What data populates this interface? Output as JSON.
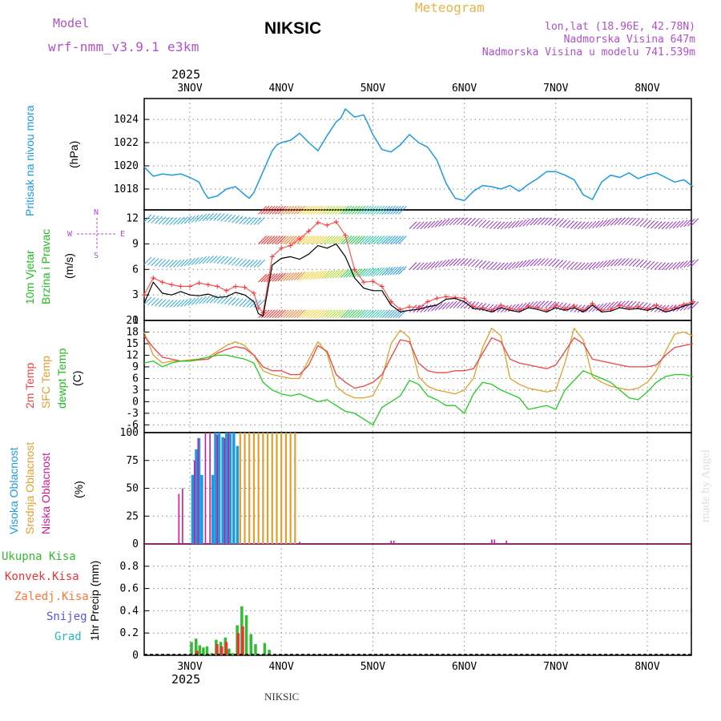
{
  "header": {
    "model_label": "Model",
    "model_name": "wrf-nmm_v3.9.1 e3km",
    "title": "NIKSIC",
    "meteogram": "Meteogram",
    "lonlat": "lon,lat (18.96E, 42.78N)",
    "elevation": "Nadmorska Visina 647m",
    "model_elevation": "Nadmorska Visina u modelu 741.539m",
    "watermark": "made by Angel",
    "footer_station": "NIKSIC",
    "year_top": "2025",
    "year_bottom": "2025"
  },
  "colors": {
    "pressure": "#1e9be0",
    "temp2m": "#ee4444",
    "sfc": "#e0a030",
    "dew": "#22cc22",
    "high_cloud": "#1e9be0",
    "mid_cloud": "#e0a030",
    "low_cloud": "#cc1a9a",
    "purple": "#b04fd0",
    "total_precip": "#33bb33",
    "convective": "#ee3333",
    "frozen": "#ff7733",
    "snow": "#5555ee",
    "grad": "#22bbbb"
  },
  "days": [
    "3NOV",
    "4NOV",
    "5NOV",
    "6NOV",
    "7NOV",
    "8NOV"
  ],
  "panel_labels": {
    "pressure_title": "Pritisak na nivou mora",
    "pressure_unit": "(hPa)",
    "wind_title_1": "10m Vjetar",
    "wind_title_2": "Brzina i Pravac",
    "wind_unit": "(m/s)",
    "compass_n": "N",
    "compass_e": "E",
    "compass_s": "S",
    "compass_w": "W",
    "temp_title_1": "2m Temp",
    "temp_title_2": "SFC Temp",
    "temp_title_3": "dewpt Temp",
    "temp_unit": "(C)",
    "cloud_title_1": "Visoka Oblacnost",
    "cloud_title_2": "Srednja Oblacnost",
    "cloud_title_3": "Niska Oblacnost",
    "cloud_unit": "(%)",
    "precip_title": "1hr Precip (mm)"
  },
  "precip_legend": [
    "Ukupna Kisa",
    "Konvek.Kisa",
    "Zaledj.Kisa",
    "Snijeg",
    "Grad"
  ],
  "chart_data": [
    {
      "type": "line",
      "title": "Pritisak na nivou mora",
      "ylabel": "(hPa)",
      "x_unit": "day (0 = 3NOV 00)",
      "ylim": [
        1016.2,
        1025.8
      ],
      "yticks": [
        1018,
        1020,
        1022,
        1024
      ],
      "series": [
        {
          "name": "SLP",
          "x": [
            -0.5,
            -0.4,
            -0.3,
            -0.2,
            -0.1,
            0.0,
            0.1,
            0.15,
            0.2,
            0.3,
            0.4,
            0.5,
            0.6,
            0.65,
            0.7,
            0.8,
            0.9,
            0.95,
            1.0,
            1.1,
            1.2,
            1.3,
            1.4,
            1.5,
            1.6,
            1.65,
            1.7,
            1.8,
            1.9,
            1.95,
            2.0,
            2.1,
            2.2,
            2.3,
            2.4,
            2.5,
            2.6,
            2.7,
            2.8,
            2.9,
            3.0,
            3.1,
            3.2,
            3.3,
            3.4,
            3.5,
            3.6,
            3.7,
            3.8,
            3.9,
            4.0,
            4.1,
            4.2,
            4.3,
            4.4,
            4.5,
            4.6,
            4.7,
            4.8,
            4.9,
            5.0,
            5.1,
            5.2,
            5.3,
            5.4,
            5.5
          ],
          "y": [
            1019.9,
            1019.1,
            1019.3,
            1019.2,
            1019.3,
            1019.0,
            1018.6,
            1017.8,
            1017.2,
            1017.4,
            1018.0,
            1018.2,
            1017.5,
            1017.2,
            1017.7,
            1019.5,
            1021.3,
            1021.8,
            1022.0,
            1022.2,
            1022.8,
            1022.0,
            1021.3,
            1022.6,
            1023.8,
            1024.1,
            1024.9,
            1024.2,
            1024.4,
            1023.6,
            1022.7,
            1021.4,
            1021.2,
            1021.8,
            1022.7,
            1022.0,
            1021.6,
            1020.5,
            1018.5,
            1017.2,
            1017.0,
            1017.8,
            1018.3,
            1018.2,
            1018.0,
            1018.3,
            1017.8,
            1018.4,
            1018.9,
            1019.5,
            1019.5,
            1019.2,
            1018.8,
            1017.5,
            1017.1,
            1018.6,
            1019.2,
            1019.0,
            1019.4,
            1018.9,
            1019.2,
            1019.4,
            1019.0,
            1018.6,
            1018.8,
            1018.2
          ]
        }
      ]
    },
    {
      "type": "line",
      "title": "10m Vjetar Brzina i Pravac",
      "ylabel": "(m/s)",
      "x_unit": "day (0 = 3NOV 00)",
      "ylim": [
        0,
        13
      ],
      "yticks": [
        0,
        3,
        6,
        9,
        12
      ],
      "series": [
        {
          "name": "Brzina",
          "x": [
            -0.5,
            -0.4,
            -0.3,
            -0.2,
            -0.1,
            0.0,
            0.1,
            0.2,
            0.3,
            0.4,
            0.5,
            0.6,
            0.7,
            0.75,
            0.8,
            0.9,
            1.0,
            1.1,
            1.2,
            1.3,
            1.4,
            1.5,
            1.6,
            1.7,
            1.8,
            1.9,
            2.0,
            2.1,
            2.2,
            2.3,
            2.4,
            2.5,
            2.6,
            2.7,
            2.8,
            2.9,
            3.0,
            3.1,
            3.2,
            3.3,
            3.4,
            3.5,
            3.6,
            3.7,
            3.8,
            3.9,
            4.0,
            4.1,
            4.2,
            4.3,
            4.4,
            4.5,
            4.6,
            4.7,
            4.8,
            4.9,
            5.0,
            5.1,
            5.2,
            5.3,
            5.4,
            5.5
          ],
          "y": [
            2.0,
            4.5,
            3.2,
            3.0,
            3.4,
            3.0,
            2.9,
            3.1,
            2.7,
            2.8,
            3.3,
            3.0,
            2.2,
            0.8,
            0.5,
            6.5,
            7.3,
            7.5,
            7.2,
            7.8,
            8.8,
            8.5,
            9.0,
            7.5,
            5.0,
            3.8,
            3.5,
            3.5,
            1.8,
            1.0,
            1.2,
            1.3,
            1.6,
            1.8,
            2.5,
            2.6,
            2.2,
            1.4,
            1.3,
            1.0,
            1.5,
            1.2,
            1.0,
            1.5,
            1.3,
            1.0,
            1.5,
            1.2,
            1.5,
            1.0,
            1.8,
            1.0,
            1.1,
            1.5,
            1.3,
            1.4,
            1.2,
            1.5,
            1.0,
            1.3,
            1.7,
            2.0
          ]
        },
        {
          "name": "Udari",
          "x": [
            -0.5,
            -0.4,
            -0.3,
            -0.2,
            -0.1,
            0.0,
            0.1,
            0.2,
            0.3,
            0.4,
            0.5,
            0.6,
            0.7,
            0.75,
            0.8,
            0.9,
            1.0,
            1.1,
            1.2,
            1.3,
            1.4,
            1.5,
            1.6,
            1.7,
            1.8,
            1.9,
            2.0,
            2.1,
            2.2,
            2.3,
            2.4,
            2.5,
            2.6,
            2.7,
            2.8,
            2.9,
            3.0,
            3.1,
            3.2,
            3.3,
            3.4,
            3.5,
            3.6,
            3.7,
            3.8,
            3.9,
            4.0,
            4.1,
            4.2,
            4.3,
            4.4,
            4.5,
            4.6,
            4.7,
            4.8,
            4.9,
            5.0,
            5.1,
            5.2,
            5.3,
            5.4,
            5.5
          ],
          "y": [
            3.0,
            5.0,
            4.5,
            4.2,
            4.0,
            4.0,
            4.4,
            4.2,
            4.0,
            3.5,
            4.0,
            3.9,
            3.2,
            1.5,
            0.9,
            7.5,
            8.5,
            8.8,
            9.6,
            10.5,
            11.5,
            11.2,
            11.6,
            10.0,
            6.0,
            4.5,
            4.6,
            4.0,
            2.2,
            1.3,
            1.6,
            1.5,
            2.2,
            2.6,
            2.8,
            2.7,
            2.6,
            1.6,
            1.5,
            1.2,
            1.8,
            1.4,
            1.2,
            1.7,
            1.5,
            1.2,
            1.8,
            1.4,
            1.7,
            1.2,
            2.0,
            1.2,
            1.3,
            1.8,
            1.5,
            1.6,
            1.4,
            1.8,
            1.3,
            1.5,
            1.9,
            2.2
          ]
        }
      ]
    },
    {
      "type": "line",
      "title": "2m Temp / SFC Temp / dewpt Temp",
      "ylabel": "(C)",
      "x_unit": "day (0 = 3NOV 00)",
      "ylim": [
        -8,
        21
      ],
      "yticks": [
        -6,
        -3,
        0,
        3,
        6,
        9,
        12,
        15,
        18,
        21
      ],
      "series": [
        {
          "name": "2m Temp",
          "x": [
            -0.5,
            -0.4,
            -0.3,
            -0.2,
            -0.1,
            0.0,
            0.1,
            0.2,
            0.3,
            0.4,
            0.5,
            0.6,
            0.7,
            0.8,
            0.9,
            1.0,
            1.1,
            1.2,
            1.3,
            1.4,
            1.5,
            1.6,
            1.7,
            1.8,
            1.9,
            2.0,
            2.1,
            2.2,
            2.3,
            2.4,
            2.5,
            2.6,
            2.7,
            2.8,
            2.9,
            3.0,
            3.1,
            3.2,
            3.3,
            3.4,
            3.5,
            3.6,
            3.7,
            3.8,
            3.9,
            4.0,
            4.1,
            4.2,
            4.3,
            4.4,
            4.5,
            4.6,
            4.7,
            4.8,
            4.9,
            5.0,
            5.1,
            5.2,
            5.3,
            5.4,
            5.5
          ],
          "y": [
            17.0,
            14.0,
            11.5,
            11.0,
            10.5,
            10.5,
            10.8,
            11.0,
            12.5,
            13.5,
            14.2,
            13.8,
            12.0,
            9.0,
            8.0,
            8.0,
            7.0,
            7.0,
            9.5,
            14.5,
            13.0,
            7.0,
            5.0,
            3.5,
            4.0,
            5.0,
            7.0,
            11.5,
            16.0,
            15.5,
            10.0,
            8.0,
            7.5,
            7.5,
            8.0,
            8.0,
            8.5,
            12.5,
            16.5,
            15.5,
            11.0,
            10.0,
            9.5,
            9.0,
            8.5,
            9.5,
            13.0,
            16.5,
            15.0,
            11.0,
            10.5,
            10.0,
            9.5,
            9.0,
            9.0,
            9.0,
            9.5,
            12.0,
            14.0,
            14.5,
            15.0
          ]
        },
        {
          "name": "SFC Temp",
          "x": [
            -0.5,
            -0.4,
            -0.3,
            -0.2,
            -0.1,
            0.0,
            0.1,
            0.2,
            0.3,
            0.4,
            0.5,
            0.6,
            0.7,
            0.8,
            0.9,
            1.0,
            1.1,
            1.2,
            1.3,
            1.4,
            1.5,
            1.6,
            1.7,
            1.8,
            1.9,
            2.0,
            2.1,
            2.2,
            2.3,
            2.4,
            2.5,
            2.6,
            2.7,
            2.8,
            2.9,
            3.0,
            3.1,
            3.2,
            3.3,
            3.4,
            3.5,
            3.6,
            3.7,
            3.8,
            3.9,
            4.0,
            4.1,
            4.2,
            4.3,
            4.4,
            4.5,
            4.6,
            4.7,
            4.8,
            4.9,
            5.0,
            5.1,
            5.2,
            5.3,
            5.4,
            5.5
          ],
          "y": [
            18.0,
            12.0,
            10.0,
            10.5,
            10.5,
            10.8,
            11.0,
            11.5,
            13.0,
            14.5,
            15.5,
            14.5,
            12.0,
            8.0,
            7.0,
            6.5,
            6.0,
            6.0,
            11.0,
            15.5,
            12.5,
            4.0,
            2.0,
            1.0,
            1.0,
            1.5,
            6.0,
            15.0,
            18.5,
            16.5,
            6.5,
            4.0,
            3.0,
            2.5,
            2.0,
            3.0,
            6.0,
            14.0,
            19.0,
            17.0,
            6.0,
            4.5,
            3.5,
            3.0,
            2.5,
            3.0,
            10.0,
            19.0,
            16.0,
            6.5,
            5.0,
            4.0,
            3.5,
            3.0,
            3.5,
            5.0,
            8.0,
            13.0,
            17.5,
            18.0,
            17.0
          ]
        },
        {
          "name": "dewpt Temp",
          "x": [
            -0.5,
            -0.4,
            -0.3,
            -0.2,
            -0.1,
            0.0,
            0.1,
            0.2,
            0.3,
            0.4,
            0.5,
            0.6,
            0.7,
            0.8,
            0.9,
            1.0,
            1.1,
            1.2,
            1.3,
            1.4,
            1.5,
            1.6,
            1.7,
            1.8,
            1.9,
            2.0,
            2.1,
            2.2,
            2.3,
            2.4,
            2.5,
            2.6,
            2.7,
            2.8,
            2.9,
            3.0,
            3.1,
            3.2,
            3.3,
            3.4,
            3.5,
            3.6,
            3.7,
            3.8,
            3.9,
            4.0,
            4.1,
            4.2,
            4.3,
            4.4,
            4.5,
            4.6,
            4.7,
            4.8,
            4.9,
            5.0,
            5.1,
            5.2,
            5.3,
            5.4,
            5.5
          ],
          "y": [
            10.0,
            10.5,
            9.0,
            10.0,
            10.5,
            10.5,
            11.0,
            11.5,
            12.0,
            12.0,
            11.5,
            11.0,
            10.0,
            5.0,
            3.0,
            2.0,
            1.5,
            2.0,
            1.0,
            0.0,
            0.5,
            -1.0,
            -2.5,
            -3.0,
            -4.5,
            -6.0,
            -1.5,
            0.0,
            1.5,
            5.5,
            4.5,
            1.5,
            0.5,
            -1.0,
            -1.0,
            -3.0,
            2.0,
            5.0,
            4.5,
            3.0,
            2.0,
            1.0,
            -2.0,
            -1.5,
            -1.0,
            -2.0,
            3.0,
            5.5,
            8.0,
            7.0,
            6.0,
            5.0,
            3.0,
            1.0,
            0.5,
            2.5,
            5.0,
            6.5,
            7.0,
            7.0,
            6.5
          ]
        }
      ]
    },
    {
      "type": "bar",
      "title": "Oblacnost",
      "ylabel": "(%)",
      "x_unit": "day (0 = 3NOV 00)",
      "ylim": [
        0,
        100
      ],
      "yticks": [
        0,
        25,
        50,
        75,
        100
      ],
      "series": [
        {
          "name": "Visoka Oblacnost",
          "x": [
            0.03,
            0.07,
            0.1,
            0.13,
            0.25,
            0.28,
            0.32,
            0.36,
            0.4,
            0.44,
            0.48,
            0.52
          ],
          "values": [
            62,
            85,
            95,
            62,
            62,
            100,
            100,
            96,
            100,
            100,
            100,
            88
          ]
        },
        {
          "name": "Srednja Oblacnost",
          "x": [
            0.55,
            0.6,
            0.65,
            0.7,
            0.75,
            0.8,
            0.85,
            0.9,
            0.95,
            1.0,
            1.05,
            1.1,
            1.15
          ],
          "values": [
            100,
            100,
            100,
            100,
            100,
            100,
            100,
            100,
            100,
            100,
            100,
            100,
            100
          ]
        },
        {
          "name": "Niska Oblacnost",
          "x": [
            -0.12,
            -0.08,
            0.05,
            0.09,
            0.17,
            0.22,
            0.3,
            0.38,
            0.42,
            1.2,
            2.2,
            2.23,
            3.3,
            3.33,
            3.46
          ],
          "values": [
            45,
            50,
            75,
            95,
            100,
            100,
            98,
            95,
            100,
            2,
            3,
            3,
            4,
            4,
            3
          ]
        }
      ]
    },
    {
      "type": "bar",
      "title": "1hr Precip (mm)",
      "ylabel": "1hr Precip (mm)",
      "x_unit": "day (0 = 3NOV 00)",
      "ylim": [
        0,
        1.0
      ],
      "yticks": [
        0,
        0.2,
        0.4,
        0.6,
        0.8
      ],
      "series": [
        {
          "name": "Ukupna Kisa",
          "x": [
            0.02,
            0.07,
            0.11,
            0.15,
            0.19,
            0.24,
            0.29,
            0.34,
            0.39,
            0.43,
            0.47,
            0.52,
            0.57,
            0.62,
            0.67,
            0.72,
            0.82,
            0.87
          ],
          "values": [
            0.12,
            0.15,
            0.09,
            0.07,
            0.08,
            0.02,
            0.14,
            0.12,
            0.16,
            0.06,
            0.02,
            0.27,
            0.44,
            0.36,
            0.19,
            0.1,
            0.11,
            0.05
          ]
        },
        {
          "name": "Konvek.Kisa",
          "x": [
            0.08,
            0.3,
            0.35,
            0.4,
            0.53,
            0.58
          ],
          "values": [
            0.04,
            0.1,
            0.08,
            0.12,
            0.2,
            0.26
          ]
        }
      ]
    }
  ]
}
